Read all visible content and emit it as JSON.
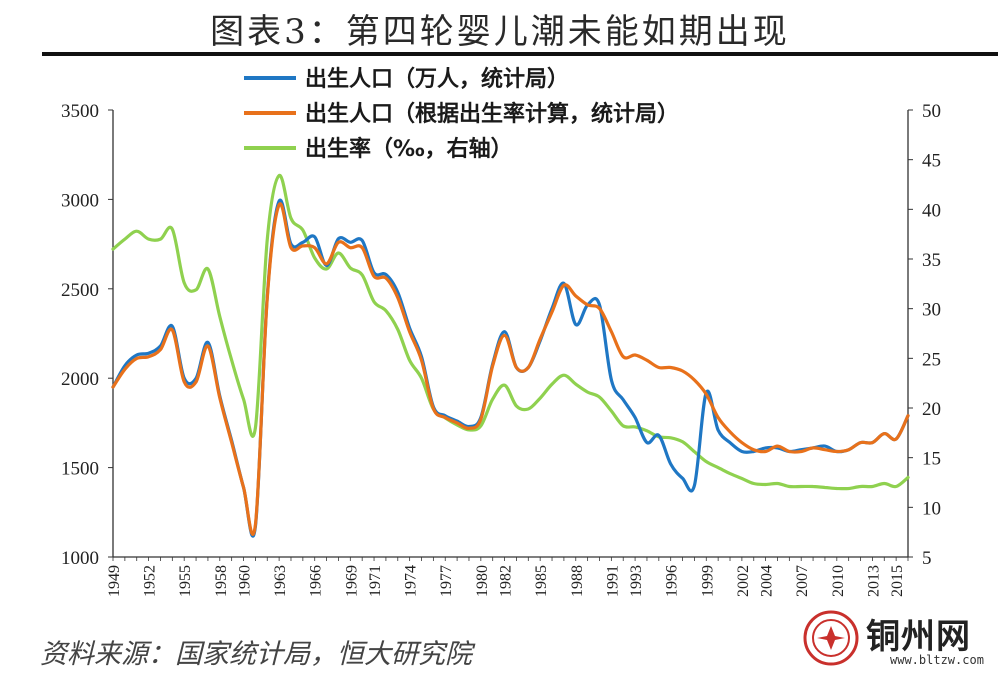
{
  "title": "图表3：第四轮婴儿潮未能如期出现",
  "source": "资料来源：国家统计局，恒大研究院",
  "watermark": {
    "name": "铜州网",
    "url": "www.bltzw.com"
  },
  "colors": {
    "blue": "#1f77c4",
    "orange": "#e8711b",
    "green": "#8fd14f"
  },
  "chart_data": {
    "type": "line",
    "y_left": {
      "min": 1000,
      "max": 3500,
      "ticks": [
        1000,
        1500,
        2000,
        2500,
        3000,
        3500
      ]
    },
    "y_right": {
      "min": 5,
      "max": 50,
      "ticks": [
        5,
        10,
        15,
        20,
        25,
        30,
        35,
        40,
        45,
        50
      ]
    },
    "x_ticks": [
      "1949",
      "1952",
      "1955",
      "1958",
      "1960",
      "1963",
      "1966",
      "1969",
      "1971",
      "1974",
      "1977",
      "1980",
      "1982",
      "1985",
      "1988",
      "1991",
      "1993",
      "1996",
      "1999",
      "2002",
      "2004",
      "2007",
      "2010",
      "2013",
      "2015"
    ],
    "x_range": [
      1949,
      2016
    ],
    "legend_position": "top",
    "series": [
      {
        "name": "出生人口（万人，统计局）",
        "axis": "left",
        "color": "#1f77c4",
        "x": [
          1949,
          1950,
          1951,
          1952,
          1953,
          1954,
          1955,
          1956,
          1957,
          1958,
          1959,
          1960,
          1961,
          1962,
          1963,
          1964,
          1965,
          1966,
          1967,
          1968,
          1969,
          1970,
          1971,
          1972,
          1973,
          1974,
          1975,
          1976,
          1977,
          1978,
          1979,
          1980,
          1981,
          1982,
          1983,
          1984,
          1985,
          1986,
          1987,
          1988,
          1989,
          1990,
          1991,
          1992,
          1993,
          1994,
          1995,
          1996,
          1997,
          1998,
          1999,
          2000,
          2001,
          2002,
          2003,
          2004,
          2005,
          2006,
          2007,
          2008,
          2009,
          2010,
          2011,
          2012,
          2013,
          2014,
          2015,
          2016
        ],
        "values": [
          1950,
          2070,
          2130,
          2140,
          2180,
          2290,
          2000,
          2000,
          2200,
          1900,
          1650,
          1390,
          1170,
          2460,
          2990,
          2750,
          2760,
          2790,
          2630,
          2780,
          2760,
          2770,
          2590,
          2580,
          2480,
          2280,
          2120,
          1840,
          1790,
          1760,
          1730,
          1780,
          2080,
          2260,
          2060,
          2060,
          2210,
          2390,
          2530,
          2300,
          2410,
          2410,
          1990,
          1880,
          1780,
          1640,
          1680,
          1520,
          1440,
          1400,
          1920,
          1710,
          1640,
          1590,
          1590,
          1610,
          1610,
          1590,
          1600,
          1610,
          1620,
          1590,
          1600,
          1640,
          1640,
          1690,
          1660,
          1790
        ]
      },
      {
        "name": "出生人口（根据出生率计算，统计局）",
        "axis": "left",
        "color": "#e8711b",
        "x": [
          1949,
          1950,
          1951,
          1952,
          1953,
          1954,
          1955,
          1956,
          1957,
          1958,
          1959,
          1960,
          1961,
          1962,
          1963,
          1964,
          1965,
          1966,
          1967,
          1968,
          1969,
          1970,
          1971,
          1972,
          1973,
          1974,
          1975,
          1976,
          1977,
          1978,
          1979,
          1980,
          1981,
          1982,
          1983,
          1984,
          1985,
          1986,
          1987,
          1988,
          1989,
          1990,
          1991,
          1992,
          1993,
          1994,
          1995,
          1996,
          1997,
          1998,
          1999,
          2000,
          2001,
          2002,
          2003,
          2004,
          2005,
          2006,
          2007,
          2008,
          2009,
          2010,
          2011,
          2012,
          2013,
          2014,
          2015,
          2016
        ],
        "values": [
          1950,
          2050,
          2110,
          2120,
          2160,
          2270,
          1980,
          1980,
          2180,
          1890,
          1640,
          1390,
          1180,
          2450,
          2970,
          2730,
          2740,
          2730,
          2640,
          2760,
          2730,
          2730,
          2570,
          2560,
          2450,
          2260,
          2100,
          1830,
          1780,
          1750,
          1720,
          1770,
          2070,
          2240,
          2060,
          2060,
          2220,
          2370,
          2520,
          2460,
          2410,
          2390,
          2260,
          2120,
          2130,
          2100,
          2060,
          2060,
          2040,
          1990,
          1910,
          1780,
          1700,
          1640,
          1600,
          1590,
          1620,
          1590,
          1590,
          1610,
          1600,
          1590,
          1600,
          1640,
          1640,
          1690,
          1660,
          1790
        ]
      },
      {
        "name": "出生率（‰，右轴）",
        "axis": "right",
        "color": "#8fd14f",
        "x": [
          1949,
          1950,
          1951,
          1952,
          1953,
          1954,
          1955,
          1956,
          1957,
          1958,
          1959,
          1960,
          1961,
          1962,
          1963,
          1964,
          1965,
          1966,
          1967,
          1968,
          1969,
          1970,
          1971,
          1972,
          1973,
          1974,
          1975,
          1976,
          1977,
          1978,
          1979,
          1980,
          1981,
          1982,
          1983,
          1984,
          1985,
          1986,
          1987,
          1988,
          1989,
          1990,
          1991,
          1992,
          1993,
          1994,
          1995,
          1996,
          1997,
          1998,
          1999,
          2000,
          2001,
          2002,
          2003,
          2004,
          2005,
          2006,
          2007,
          2008,
          2009,
          2010,
          2011,
          2012,
          2013,
          2014,
          2015,
          2016
        ],
        "values": [
          36,
          37,
          37.8,
          37,
          37,
          38,
          32.6,
          31.9,
          34,
          29.2,
          24.8,
          20.9,
          18,
          37,
          43.4,
          39.1,
          37.9,
          35.1,
          34,
          35.6,
          34.1,
          33.4,
          30.7,
          29.8,
          27.9,
          24.8,
          23,
          19.9,
          19,
          18.3,
          17.8,
          18.2,
          20.9,
          22.3,
          20.2,
          19.9,
          21,
          22.4,
          23.3,
          22.4,
          21.6,
          21.1,
          19.7,
          18.2,
          18.1,
          17.7,
          17.1,
          17,
          16.6,
          15.6,
          14.6,
          14,
          13.4,
          12.9,
          12.4,
          12.3,
          12.4,
          12.1,
          12.1,
          12.1,
          12,
          11.9,
          11.9,
          12.1,
          12.1,
          12.4,
          12.1,
          13
        ]
      }
    ]
  }
}
